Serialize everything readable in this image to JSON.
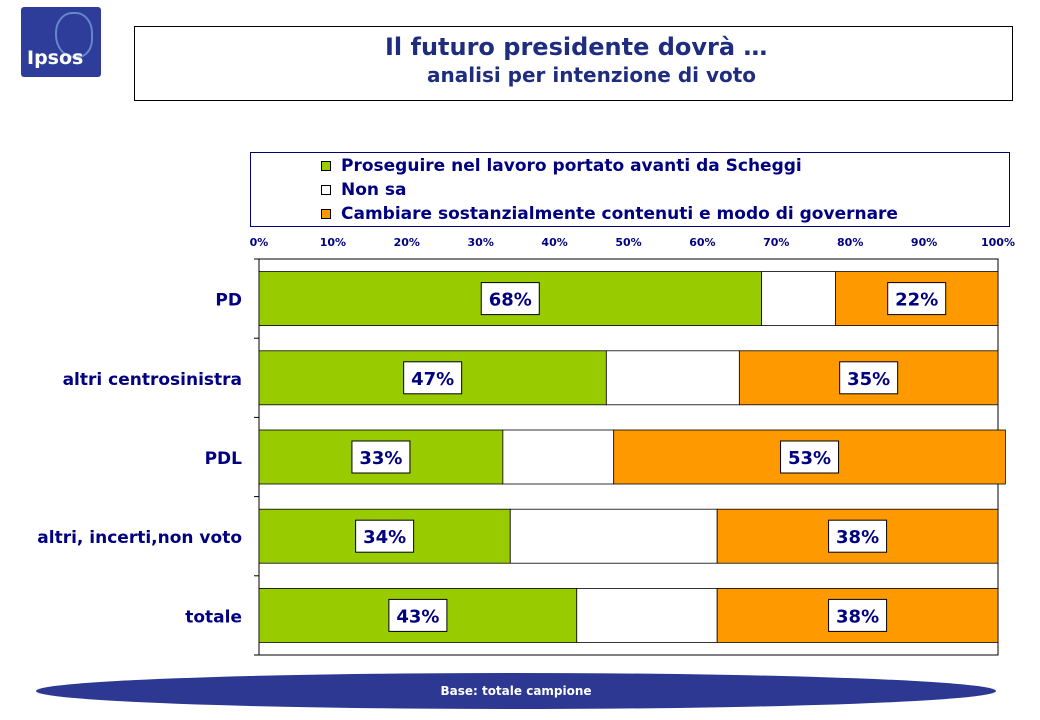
{
  "logo": {
    "text": "Ipsos"
  },
  "header": {
    "title": "Il futuro presidente dovrà …",
    "subtitle": "analisi per intenzione di voto"
  },
  "footer": {
    "text": "Base: totale campione"
  },
  "chart_data": {
    "type": "bar",
    "orientation": "horizontal",
    "stacked_percent": true,
    "categories": [
      "PD",
      "altri centrosinistra",
      "PDL",
      "altri, incerti,non voto",
      "totale"
    ],
    "series": [
      {
        "name": "Proseguire nel lavoro portato avanti da Scheggi",
        "color": "#99cc00",
        "values": [
          68,
          47,
          33,
          34,
          43
        ],
        "labels": [
          "68%",
          "47%",
          "33%",
          "34%",
          "43%"
        ]
      },
      {
        "name": "Non sa",
        "color": "#ffffff",
        "values": [
          10,
          18,
          15,
          28,
          19
        ],
        "labels": []
      },
      {
        "name": "Cambiare sostanzialmente contenuti e modo di governare",
        "color": "#ff9900",
        "values": [
          22,
          35,
          53,
          38,
          38
        ],
        "labels": [
          "22%",
          "35%",
          "53%",
          "38%",
          "38%"
        ]
      }
    ],
    "xticks": [
      "0%",
      "10%",
      "20%",
      "30%",
      "40%",
      "50%",
      "60%",
      "70%",
      "80%",
      "90%",
      "100%"
    ],
    "xlim": [
      0,
      100
    ],
    "legend_position": "top"
  }
}
